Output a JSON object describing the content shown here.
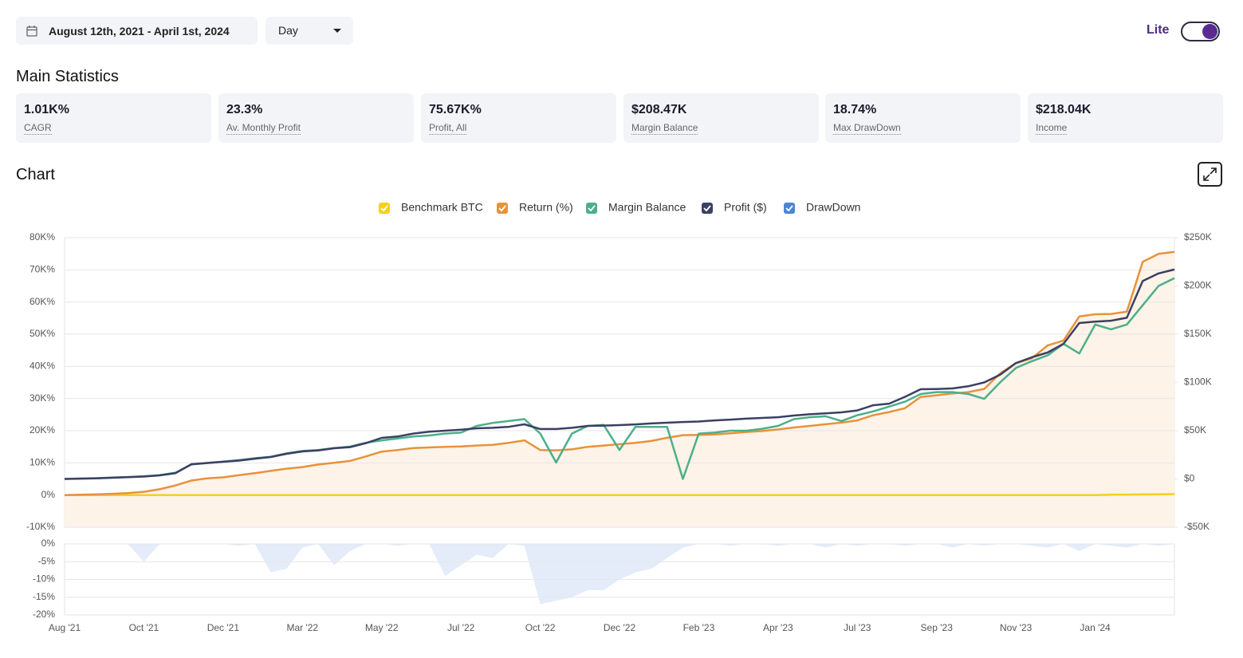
{
  "header": {
    "date_range": "August 12th, 2021 - April 1st, 2024",
    "period": "Day",
    "mode": "Lite"
  },
  "sections": {
    "stats_title": "Main Statistics",
    "chart_title": "Chart"
  },
  "stats": [
    {
      "value": "1.01K%",
      "label": "CAGR"
    },
    {
      "value": "23.3%",
      "label": "Av. Monthly Profit"
    },
    {
      "value": "75.67K%",
      "label": "Profit, All"
    },
    {
      "value": "$208.47K",
      "label": "Margin Balance"
    },
    {
      "value": "18.74%",
      "label": "Max DrawDown"
    },
    {
      "value": "$218.04K",
      "label": "Income"
    }
  ],
  "chart_data": {
    "type": "line",
    "categories": [
      "Aug '21",
      null,
      null,
      null,
      null,
      "Oct '21",
      null,
      null,
      null,
      null,
      "Dec '21",
      null,
      null,
      null,
      null,
      "Mar '22",
      null,
      null,
      null,
      null,
      "May '22",
      null,
      null,
      null,
      null,
      "Jul '22",
      null,
      null,
      null,
      null,
      "Oct '22",
      null,
      null,
      null,
      null,
      "Dec '22",
      null,
      null,
      null,
      null,
      "Feb '23",
      null,
      null,
      null,
      null,
      "Apr '23",
      null,
      null,
      null,
      null,
      "Jul '23",
      null,
      null,
      null,
      null,
      "Sep '23",
      null,
      null,
      null,
      null,
      "Nov '23",
      null,
      null,
      null,
      null,
      "Jan '24",
      null,
      null,
      null,
      null,
      null
    ],
    "series": [
      {
        "name": "Benchmark BTC",
        "color": "#f5cf1d",
        "axis": "y",
        "values": [
          0,
          0,
          0,
          0,
          0,
          0,
          0,
          0,
          0,
          0,
          0,
          0,
          0,
          0,
          0,
          0,
          0,
          0,
          0,
          0,
          0,
          0,
          0,
          0,
          0,
          0,
          0,
          0,
          0,
          0,
          0,
          0,
          0,
          0,
          0,
          0,
          0,
          0,
          0,
          0,
          0,
          0,
          0,
          0,
          0,
          0,
          0,
          0,
          0,
          0,
          0,
          0,
          0,
          0,
          0,
          0,
          0,
          0,
          0,
          0,
          0,
          0,
          0,
          0,
          0,
          0,
          100,
          150,
          200,
          250,
          300
        ]
      },
      {
        "name": "Return (%)",
        "color": "#e8923a",
        "axis": "y",
        "area_color": "#fdf3e8",
        "values": [
          0,
          100,
          200,
          400,
          600,
          1000,
          1800,
          3000,
          4500,
          5200,
          5500,
          6200,
          6800,
          7500,
          8200,
          8700,
          9500,
          10000,
          10600,
          12000,
          13500,
          14000,
          14600,
          14800,
          15000,
          15100,
          15400,
          15600,
          16200,
          17000,
          14000,
          13900,
          14200,
          15000,
          15400,
          15800,
          16200,
          16800,
          17800,
          18600,
          18700,
          18800,
          19200,
          19600,
          19900,
          20400,
          21000,
          21500,
          22000,
          22500,
          23200,
          24800,
          25800,
          27000,
          30500,
          31000,
          31600,
          32000,
          33000,
          37800,
          41000,
          42500,
          46500,
          48000,
          55500,
          56200,
          56300,
          57000,
          72500,
          75000,
          75600
        ]
      },
      {
        "name": "Margin Balance",
        "color": "#4caf8a",
        "axis": "y2",
        "values": [
          0,
          400,
          800,
          1500,
          2000,
          2800,
          4000,
          6500,
          15000,
          16500,
          18000,
          19500,
          21500,
          23000,
          26500,
          29000,
          30000,
          32000,
          33500,
          37500,
          40000,
          42000,
          44000,
          45000,
          47000,
          48000,
          55000,
          58000,
          60000,
          62000,
          47000,
          17000,
          47000,
          55000,
          56000,
          30000,
          54000,
          54000,
          54000,
          0,
          47000,
          48000,
          50000,
          50000,
          52000,
          55000,
          62000,
          64000,
          65000,
          60000,
          66000,
          70000,
          75000,
          80000,
          88000,
          90000,
          90000,
          88000,
          83000,
          100000,
          115000,
          122000,
          128000,
          140000,
          130000,
          160000,
          155000,
          160000,
          180000,
          200000,
          208000
        ]
      },
      {
        "name": "Profit ($)",
        "color": "#3c3f64",
        "axis": "y2",
        "values": [
          0,
          300,
          600,
          1200,
          1800,
          2500,
          3700,
          6000,
          15300,
          16500,
          17800,
          19000,
          21000,
          22700,
          26000,
          28500,
          29500,
          31800,
          33000,
          37000,
          42600,
          44000,
          47000,
          49000,
          50000,
          51000,
          52500,
          53000,
          54000,
          56600,
          51700,
          51700,
          53000,
          55000,
          55300,
          55800,
          56500,
          57500,
          58300,
          59000,
          59500,
          60700,
          61500,
          62500,
          63200,
          64000,
          65700,
          67000,
          68000,
          69000,
          71000,
          76400,
          78000,
          85000,
          93000,
          93200,
          93800,
          96000,
          100000,
          107900,
          120000,
          126000,
          131000,
          140000,
          161600,
          163000,
          164000,
          167000,
          205000,
          213000,
          217000
        ]
      },
      {
        "name": "DrawDown",
        "color": "#4a86d4",
        "axis": "y3",
        "area_color": "#e3ecf8",
        "values": [
          0,
          0,
          0,
          0,
          0,
          -5,
          0,
          0,
          0,
          0,
          0,
          -0.5,
          0,
          -8,
          -7,
          -1,
          0,
          -6,
          -2,
          0,
          0,
          -0.5,
          0,
          0,
          -9,
          -6,
          -3,
          -4,
          0,
          -0.5,
          -17,
          -16,
          -15,
          -13,
          -13,
          -10,
          -8,
          -7,
          -4,
          -1,
          0,
          0,
          -0.5,
          0,
          0,
          -0.5,
          0,
          0,
          -1,
          0,
          -0.5,
          0,
          0,
          -0.5,
          0,
          0,
          -1,
          0,
          -0.5,
          0,
          0,
          -0.5,
          -1,
          0,
          -2,
          0,
          -0.5,
          -1,
          0,
          -0.5,
          0
        ]
      }
    ],
    "ylim": [
      -10000,
      80000
    ],
    "yticks": [
      {
        "value": -10000,
        "label": "-10K%"
      },
      {
        "value": 0,
        "label": "0%"
      },
      {
        "value": 10000,
        "label": "10K%"
      },
      {
        "value": 20000,
        "label": "20K%"
      },
      {
        "value": 30000,
        "label": "30K%"
      },
      {
        "value": 40000,
        "label": "40K%"
      },
      {
        "value": 50000,
        "label": "50K%"
      },
      {
        "value": 60000,
        "label": "60K%"
      },
      {
        "value": 70000,
        "label": "70K%"
      },
      {
        "value": 80000,
        "label": "80K%"
      }
    ],
    "y2lim": [
      -50000,
      250000
    ],
    "y2ticks": [
      {
        "value": -50000,
        "label": "-$50K"
      },
      {
        "value": 0,
        "label": "$0"
      },
      {
        "value": 50000,
        "label": "$50K"
      },
      {
        "value": 100000,
        "label": "$100K"
      },
      {
        "value": 150000,
        "label": "$150K"
      },
      {
        "value": 200000,
        "label": "$200K"
      },
      {
        "value": 250000,
        "label": "$250K"
      }
    ],
    "y3lim": [
      -20,
      0
    ],
    "y3ticks": [
      {
        "value": 0,
        "label": "0%"
      },
      {
        "value": -5,
        "label": "-5%"
      },
      {
        "value": -10,
        "label": "-10%"
      },
      {
        "value": -15,
        "label": "-15%"
      },
      {
        "value": -20,
        "label": "-20%"
      }
    ],
    "grid": true,
    "legend": "top"
  }
}
